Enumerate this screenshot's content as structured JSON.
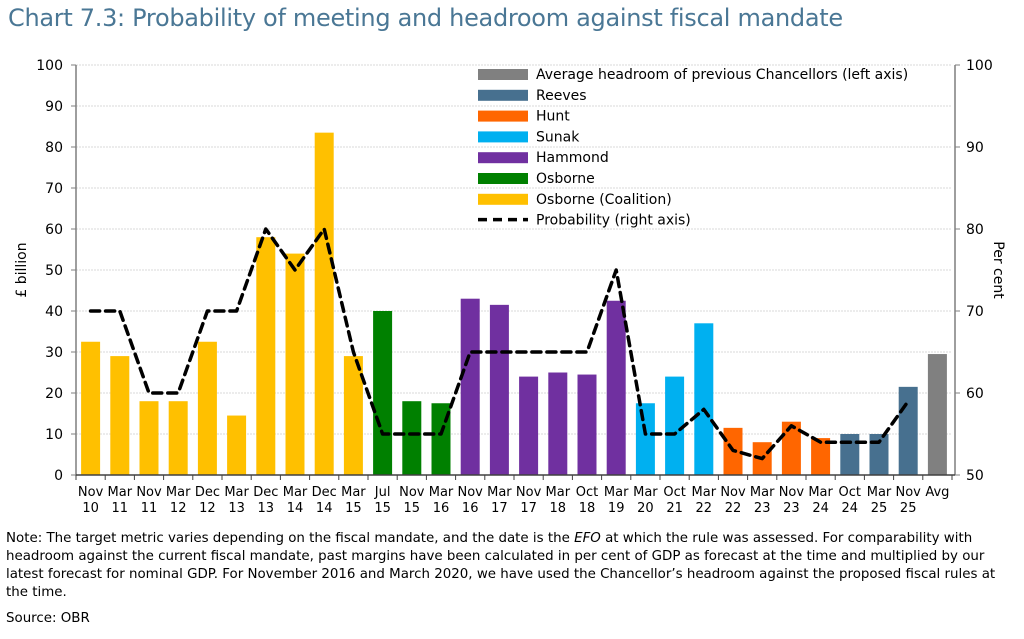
{
  "title": "Chart 7.3: Probability of meeting and headroom against fiscal mandate",
  "note": {
    "prefix": "Note: The target metric varies depending on the fiscal mandate, and the date is the ",
    "emph": "EFO",
    "suffix": " at which the rule was assessed. For comparability with headroom against the current fiscal mandate, past margins have been calculated in per cent of GDP as forecast at the time and multiplied by our latest forecast for nominal GDP. For November 2016 and March 2020, we have used the Chancellor’s headroom against the proposed fiscal rules at the time."
  },
  "source": "Source: OBR",
  "chart_data": {
    "type": "bar",
    "ylabel": "£ billion",
    "y2label": "Per cent",
    "ylim": [
      0,
      100
    ],
    "y2lim": [
      50,
      100
    ],
    "yticks": [
      0,
      10,
      20,
      30,
      40,
      50,
      60,
      70,
      80,
      90,
      100
    ],
    "y2ticks": [
      50,
      60,
      70,
      80,
      90,
      100
    ],
    "grid": true,
    "legend_placement": "top-right",
    "categories": [
      [
        "Nov",
        "10"
      ],
      [
        "Mar",
        "11"
      ],
      [
        "Nov",
        "11"
      ],
      [
        "Mar",
        "12"
      ],
      [
        "Dec",
        "12"
      ],
      [
        "Mar",
        "13"
      ],
      [
        "Dec",
        "13"
      ],
      [
        "Mar",
        "14"
      ],
      [
        "Dec",
        "14"
      ],
      [
        "Mar",
        "15"
      ],
      [
        "Jul",
        "15"
      ],
      [
        "Nov",
        "15"
      ],
      [
        "Mar",
        "16"
      ],
      [
        "Nov",
        "16"
      ],
      [
        "Mar",
        "17"
      ],
      [
        "Nov",
        "17"
      ],
      [
        "Mar",
        "18"
      ],
      [
        "Oct",
        "18"
      ],
      [
        "Mar",
        "19"
      ],
      [
        "Mar",
        "20"
      ],
      [
        "Oct",
        "21"
      ],
      [
        "Mar",
        "22"
      ],
      [
        "Nov",
        "22"
      ],
      [
        "Mar",
        "23"
      ],
      [
        "Nov",
        "23"
      ],
      [
        "Mar",
        "24"
      ],
      [
        "Oct",
        "24"
      ],
      [
        "Mar",
        "25"
      ],
      [
        "Nov",
        "25"
      ],
      [
        "Avg",
        ""
      ]
    ],
    "headroom": [
      32.5,
      29,
      18,
      18,
      32.5,
      14.5,
      58,
      54,
      83.5,
      29,
      40,
      18,
      17.5,
      43,
      41.5,
      24,
      25,
      24.5,
      42.5,
      17.5,
      24,
      37,
      11.5,
      8,
      13,
      9,
      10,
      10,
      21.5,
      29.5
    ],
    "chancellor": [
      "Osborne (Coalition)",
      "Osborne (Coalition)",
      "Osborne (Coalition)",
      "Osborne (Coalition)",
      "Osborne (Coalition)",
      "Osborne (Coalition)",
      "Osborne (Coalition)",
      "Osborne (Coalition)",
      "Osborne (Coalition)",
      "Osborne (Coalition)",
      "Osborne",
      "Osborne",
      "Osborne",
      "Hammond",
      "Hammond",
      "Hammond",
      "Hammond",
      "Hammond",
      "Hammond",
      "Sunak",
      "Sunak",
      "Sunak",
      "Hunt",
      "Hunt",
      "Hunt",
      "Hunt",
      "Reeves",
      "Reeves",
      "Reeves",
      "Average headroom of previous Chancellors (left axis)"
    ],
    "probability": [
      70,
      70,
      60,
      60,
      70,
      70,
      80,
      75,
      80,
      65,
      55,
      55,
      55,
      65,
      65,
      65,
      65,
      65,
      75,
      55,
      55,
      58,
      53,
      52,
      56,
      54,
      54,
      54,
      59,
      null
    ],
    "legend": [
      {
        "name": "Average headroom of previous Chancellors (left axis)",
        "color": "#808080",
        "kind": "bar"
      },
      {
        "name": "Reeves",
        "color": "#47708F",
        "kind": "bar"
      },
      {
        "name": "Hunt",
        "color": "#FF6600",
        "kind": "bar"
      },
      {
        "name": "Sunak",
        "color": "#00B0F0",
        "kind": "bar"
      },
      {
        "name": "Hammond",
        "color": "#7030A0",
        "kind": "bar"
      },
      {
        "name": "Osborne",
        "color": "#008000",
        "kind": "bar"
      },
      {
        "name": "Osborne (Coalition)",
        "color": "#FFC000",
        "kind": "bar"
      },
      {
        "name": "Probability (right axis)",
        "color": "#000000",
        "kind": "dashed-line"
      }
    ]
  }
}
